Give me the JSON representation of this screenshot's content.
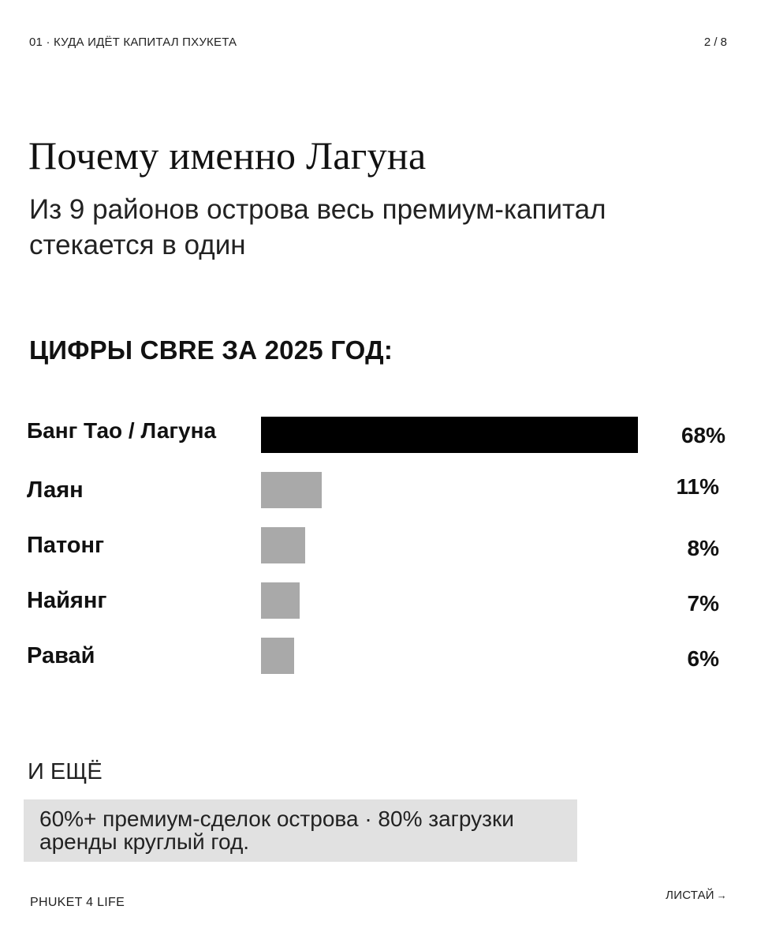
{
  "header": {
    "series_label": "01 · КУДА ИДЁТ КАПИТАЛ ПХУКЕТА",
    "page_counter": "2 / 8"
  },
  "title": "Почему именно Лагуна",
  "subtitle": "Из 9 районов острова весь премиум-капитал стекается в один",
  "section_title": "ЦИФРЫ CBRE ЗА 2025 ГОД:",
  "colors": {
    "highlight_bar": "#000000",
    "regular_bar": "#a9a9a9",
    "note_background": "#e1e1e1"
  },
  "chart_data": {
    "type": "bar",
    "orientation": "horizontal",
    "title": "ЦИФРЫ CBRE ЗА 2025 ГОД:",
    "categories": [
      "Банг Тао / Лагуна",
      "Лаян",
      "Патонг",
      "Найянг",
      "Равай"
    ],
    "values": [
      68,
      11,
      8,
      7,
      6
    ],
    "value_labels": [
      "68%",
      "11%",
      "8%",
      "7%",
      "6%"
    ],
    "unit": "%",
    "highlight_index": 0,
    "grid": false,
    "legend": "none"
  },
  "more": {
    "label": "И ЕЩЁ",
    "text": "60%+ премиум-сделок острова · 80% загрузки аренды круглый год."
  },
  "footer": {
    "brand": "PHUKET 4 LIFE",
    "swipe_label": "ЛИСТАЙ",
    "swipe_icon": "arrow-right-icon"
  }
}
